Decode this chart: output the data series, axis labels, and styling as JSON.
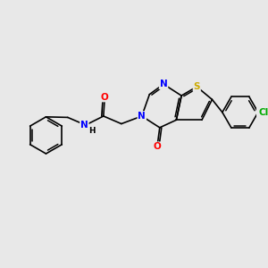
{
  "background_color": "#e8e8e8",
  "bond_color": "#000000",
  "atom_colors": {
    "N": "#0000ff",
    "O": "#ff0000",
    "S": "#ccaa00",
    "Cl": "#00aa00",
    "C": "#000000",
    "H": "#000000"
  },
  "font_size": 7.5,
  "bond_width": 1.2
}
